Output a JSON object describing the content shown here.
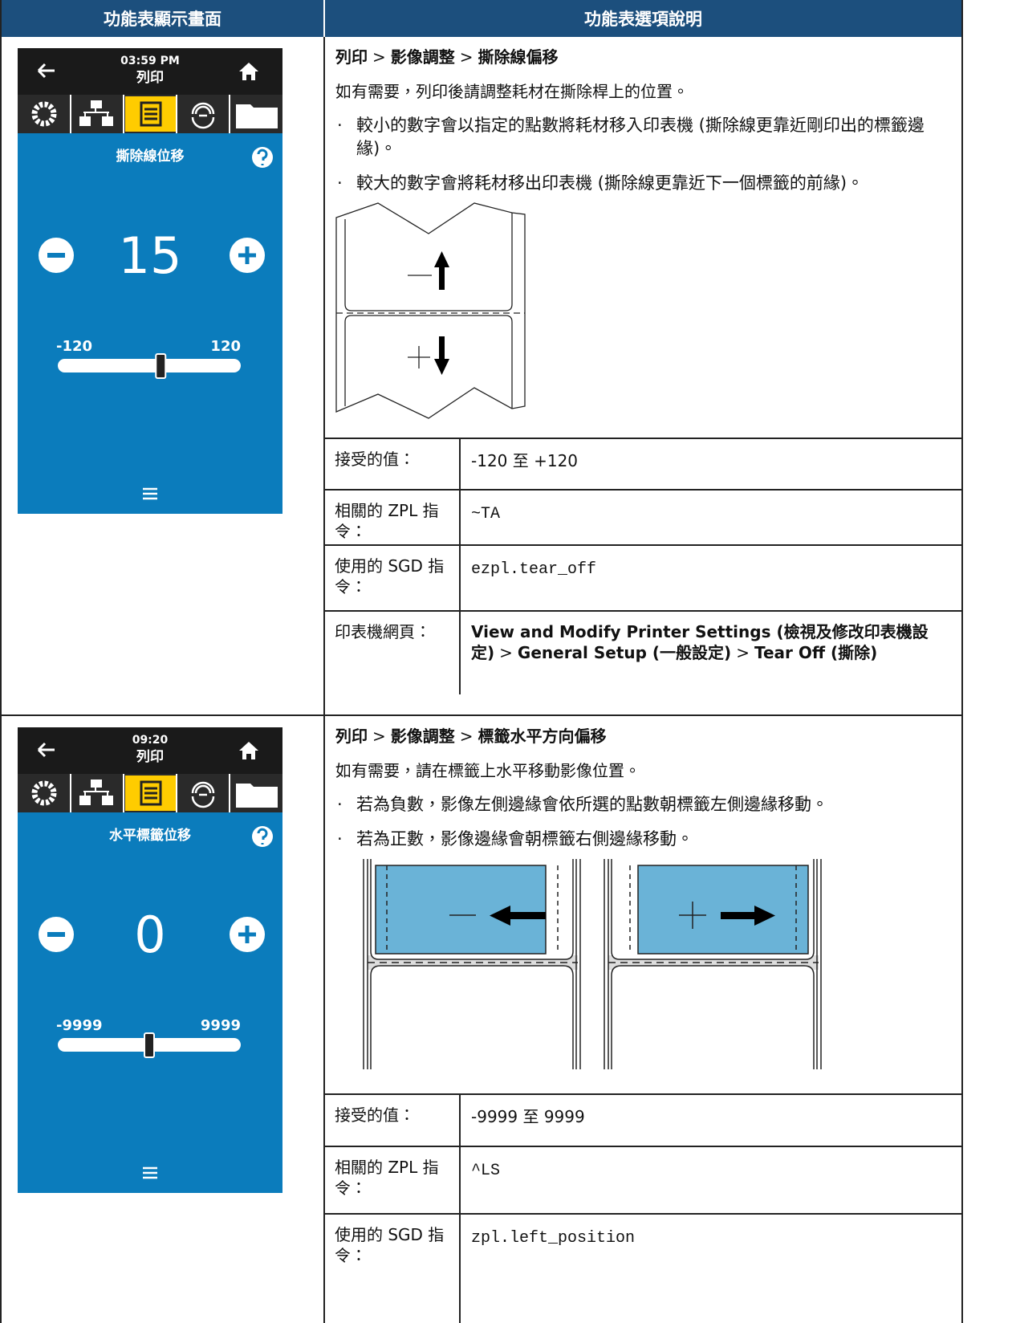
{
  "header": {
    "col1": "功能表顯示畫面",
    "col2": "功能表選項說明"
  },
  "separator": ">",
  "bullet_marker": "·",
  "rows": [
    {
      "screen": {
        "time": "03:59 PM",
        "title": "列印",
        "setting": "撕除線位移",
        "value": 15,
        "min": -120,
        "max": 120
      },
      "path": [
        "列印",
        "影像調整",
        "撕除線偏移"
      ],
      "intro": "如有需要，列印後請調整耗材在撕除桿上的位置。",
      "bullets": [
        "較小的數字會以指定的點數將耗材移入印表機 (撕除線更靠近剛印出的標籤邊緣)。",
        "較大的數字會將耗材移出印表機 (撕除線更靠近下一個標籤的前緣)。"
      ],
      "properties": [
        {
          "label": "接受的值：",
          "value": "-120 至 +120"
        },
        {
          "label": "相關的 ZPL 指令：",
          "code": "~TA"
        },
        {
          "label": "使用的 SGD 指令：",
          "code": "ezpl.tear_off"
        },
        {
          "label": "印表機網頁：",
          "path": [
            "View and Modify Printer Settings (檢視及修改印表機設定)",
            "General Setup (一般設定)",
            "Tear Off (撕除)"
          ]
        }
      ]
    },
    {
      "screen": {
        "time": "09:20",
        "title": "列印",
        "setting": "水平標籤位移",
        "value": 0,
        "min": -9999,
        "max": 9999
      },
      "path": [
        "列印",
        "影像調整",
        "標籤水平方向偏移"
      ],
      "intro": "如有需要，請在標籤上水平移動影像位置。",
      "bullets": [
        "若為負數，影像左側邊緣會依所選的點數朝標籤左側邊緣移動。",
        "若為正數，影像邊緣會朝標籤右側邊緣移動。"
      ],
      "properties": [
        {
          "label": "接受的值：",
          "value": "-9999 至 9999"
        },
        {
          "label": "相關的 ZPL 指令：",
          "code": "^LS"
        },
        {
          "label": "使用的 SGD 指令：",
          "code": "zpl.left_position"
        }
      ]
    }
  ]
}
